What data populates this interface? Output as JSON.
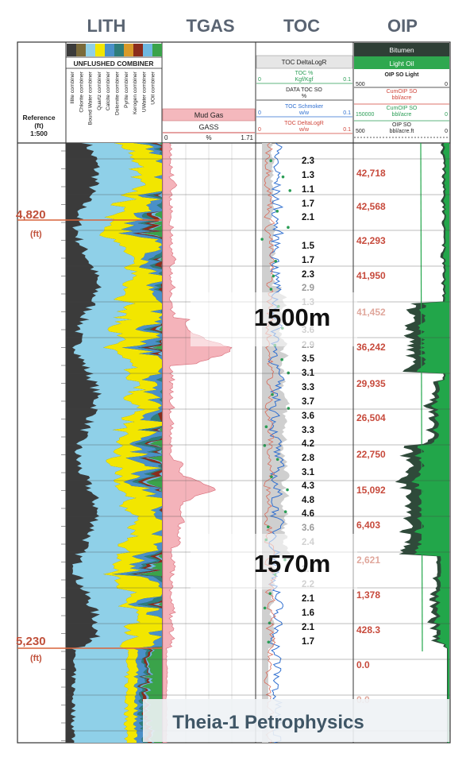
{
  "track_titles": [
    "LITH",
    "TGAS",
    "TOC",
    "OIP"
  ],
  "reference": {
    "label_line1": "Reference",
    "label_line2": "(ft)",
    "label_line3": "1:500"
  },
  "depth_marks": [
    {
      "value": "4,820",
      "unit": "(ft)"
    },
    {
      "value": "5,230",
      "unit": "(ft)"
    }
  ],
  "lith": {
    "header": "UNFLUSHED COMBINER",
    "curves": [
      "Illite combiner",
      "Chlorite combiner",
      "Bound Water combiner",
      "Quartz combiner",
      "Calcite combiner",
      "Dolomite combiner",
      "Pyrite combiner",
      "Kerogen combiner",
      "UWater combiner",
      "UOil combiner"
    ],
    "legend_colors": [
      "#3b3b3b",
      "#7a6a3a",
      "#8fd0e8",
      "#f2e600",
      "#4a90c8",
      "#2e7d7a",
      "#d89a2a",
      "#8b2c1c",
      "#6fb8e0",
      "#3aa34a"
    ]
  },
  "tgas": {
    "box_label": "Mud Gas",
    "curve": "GASS",
    "min": "0",
    "unit": "%",
    "max": "1.71"
  },
  "toc": {
    "header": "TOC DeltaLogR",
    "rows": [
      {
        "name": "TOC %",
        "min": "0",
        "unit": "Kgf/Kgf",
        "max": "0.1"
      },
      {
        "name": "DATA TOC SO",
        "min": "",
        "unit": "%",
        "max": ""
      },
      {
        "name": "TOC Schmoker",
        "min": "0",
        "unit": "w/w",
        "max": "0.1"
      },
      {
        "name": "TOC DeltaLogR",
        "min": "0",
        "unit": "w/w",
        "max": "0.1"
      }
    ],
    "values": [
      "2.3",
      "1.3",
      "1.1",
      "1.7",
      "2.1",
      "1.5",
      "1.7",
      "2.3",
      "2.9",
      "1.3",
      "3.6",
      "2.9",
      "3.5",
      "3.1",
      "3.3",
      "3.7",
      "3.6",
      "3.3",
      "4.2",
      "2.8",
      "3.1",
      "4.3",
      "4.8",
      "4.6",
      "3.6",
      "2.4",
      "2.5",
      "2.2",
      "2.1",
      "1.6",
      "2.1",
      "1.7"
    ]
  },
  "oip": {
    "header1": "Bitumen",
    "header2": "Light Oil",
    "rows": [
      {
        "name": "OIP SO Light",
        "min": "500",
        "unit": "",
        "max": "0"
      },
      {
        "name": "CumOIP SO",
        "min": "",
        "unit": "bbl/acre",
        "max": ""
      },
      {
        "name": "CumOIP SO",
        "min": "150000",
        "unit": "bbl/acre",
        "max": "0"
      },
      {
        "name": "OIP SO",
        "min": "500",
        "unit": "bbl/acre.ft",
        "max": "0"
      }
    ],
    "values": [
      "42,718",
      "42,568",
      "42,293",
      "41,950",
      "41,452",
      "36,242",
      "29,935",
      "26,504",
      "22,750",
      "15,092",
      "6,403",
      "2,621",
      "1,378",
      "428.3",
      "0.0",
      "0.0"
    ]
  },
  "overlays": [
    "1500m",
    "1570m"
  ],
  "footer_title": "Theia-1 Petrophysics",
  "chart_data": {
    "type": "table",
    "tracks": [
      "LITH",
      "TGAS",
      "TOC",
      "OIP"
    ],
    "depth_unit": "ft",
    "depth_marks": [
      4820,
      5230
    ],
    "tgas_range": [
      0,
      1.71
    ],
    "toc_values": [
      2.3,
      1.3,
      1.1,
      1.7,
      2.1,
      1.5,
      1.7,
      2.3,
      2.9,
      1.3,
      3.6,
      2.9,
      3.5,
      3.1,
      3.3,
      3.7,
      3.6,
      3.3,
      4.2,
      2.8,
      3.1,
      4.3,
      4.8,
      4.6,
      3.6,
      2.4,
      2.5,
      2.2,
      2.1,
      1.6,
      2.1,
      1.7
    ],
    "oip_cumulative_bbl_per_acre": [
      42718,
      42568,
      42293,
      41950,
      41452,
      36242,
      29935,
      26504,
      22750,
      15092,
      6403,
      2621,
      1378,
      428.3,
      0.0,
      0.0
    ]
  }
}
